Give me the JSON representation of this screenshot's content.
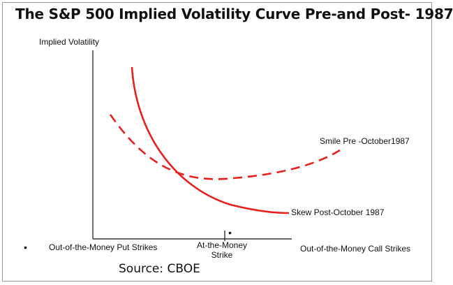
{
  "title": "The S&P 500 Implied Volatility Curve Pre-and Post- 1987",
  "y_axis_label": "Implied Volatility",
  "x_labels": {
    "put": "Out-of-the-Money Put Strikes",
    "atm_line1": "At-the-Money",
    "atm_line2": "Strike",
    "call": "Out-of-the-Money Call Strikes"
  },
  "curves": {
    "smile": {
      "label": "Smile Pre -October1987",
      "color": "#e8201c",
      "style": "dashed"
    },
    "skew": {
      "label": "Skew Post-October 1987",
      "color": "#e8201c",
      "style": "solid"
    }
  },
  "bullet": "•",
  "source": "Source: CBOE"
}
